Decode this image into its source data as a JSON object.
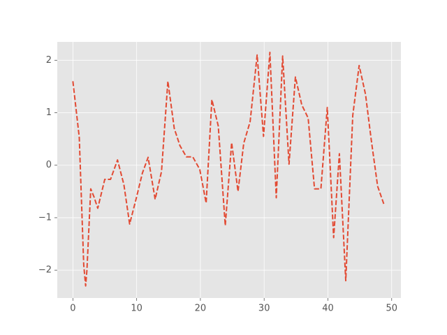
{
  "chart_data": {
    "type": "line",
    "x": [
      0,
      1,
      1.7,
      2.0,
      2.2,
      2.8,
      3.3,
      3.9,
      5,
      5.9,
      7,
      8,
      8.9,
      9.9,
      10.9,
      11.8,
      12.9,
      13.9,
      14.9,
      15.9,
      16.8,
      17.8,
      18.8,
      19.9,
      20.9,
      21.8,
      22.8,
      23.9,
      24.9,
      25.9,
      26.8,
      27.8,
      28.9,
      29.9,
      30.9,
      31.9,
      32.9,
      33.9,
      34.9,
      35.9,
      36.9,
      37.9,
      38.9,
      39.9,
      40.9,
      41.8,
      42.8,
      43.9,
      44.9,
      45.9,
      46.8,
      47.8,
      48.8
    ],
    "series": [
      {
        "color": "#E24A33",
        "values": [
          1.6,
          0.53,
          -1.9,
          -2.3,
          -2.0,
          -0.45,
          -0.6,
          -0.82,
          -0.27,
          -0.27,
          0.1,
          -0.37,
          -1.12,
          -0.65,
          -0.15,
          0.15,
          -0.65,
          -0.12,
          1.6,
          0.7,
          0.37,
          0.16,
          0.16,
          -0.08,
          -0.72,
          1.25,
          0.75,
          -1.15,
          0.43,
          -0.5,
          0.42,
          0.83,
          2.1,
          0.55,
          2.15,
          -0.62,
          2.08,
          0.02,
          1.68,
          1.15,
          0.9,
          -0.45,
          -0.45,
          1.1,
          -1.38,
          0.22,
          -2.2,
          0.95,
          1.9,
          1.35,
          0.48,
          -0.4,
          -0.75
        ]
      }
    ],
    "xlim": [
      -2.45,
      51.45
    ],
    "xticks": [
      0,
      10,
      20,
      30,
      40,
      50
    ],
    "ylim": [
      -2.53,
      2.35
    ],
    "yticks": [
      {
        "value": -2,
        "label": "−2"
      },
      {
        "value": -1,
        "label": "−1"
      },
      0,
      1,
      2
    ],
    "grid": true
  }
}
